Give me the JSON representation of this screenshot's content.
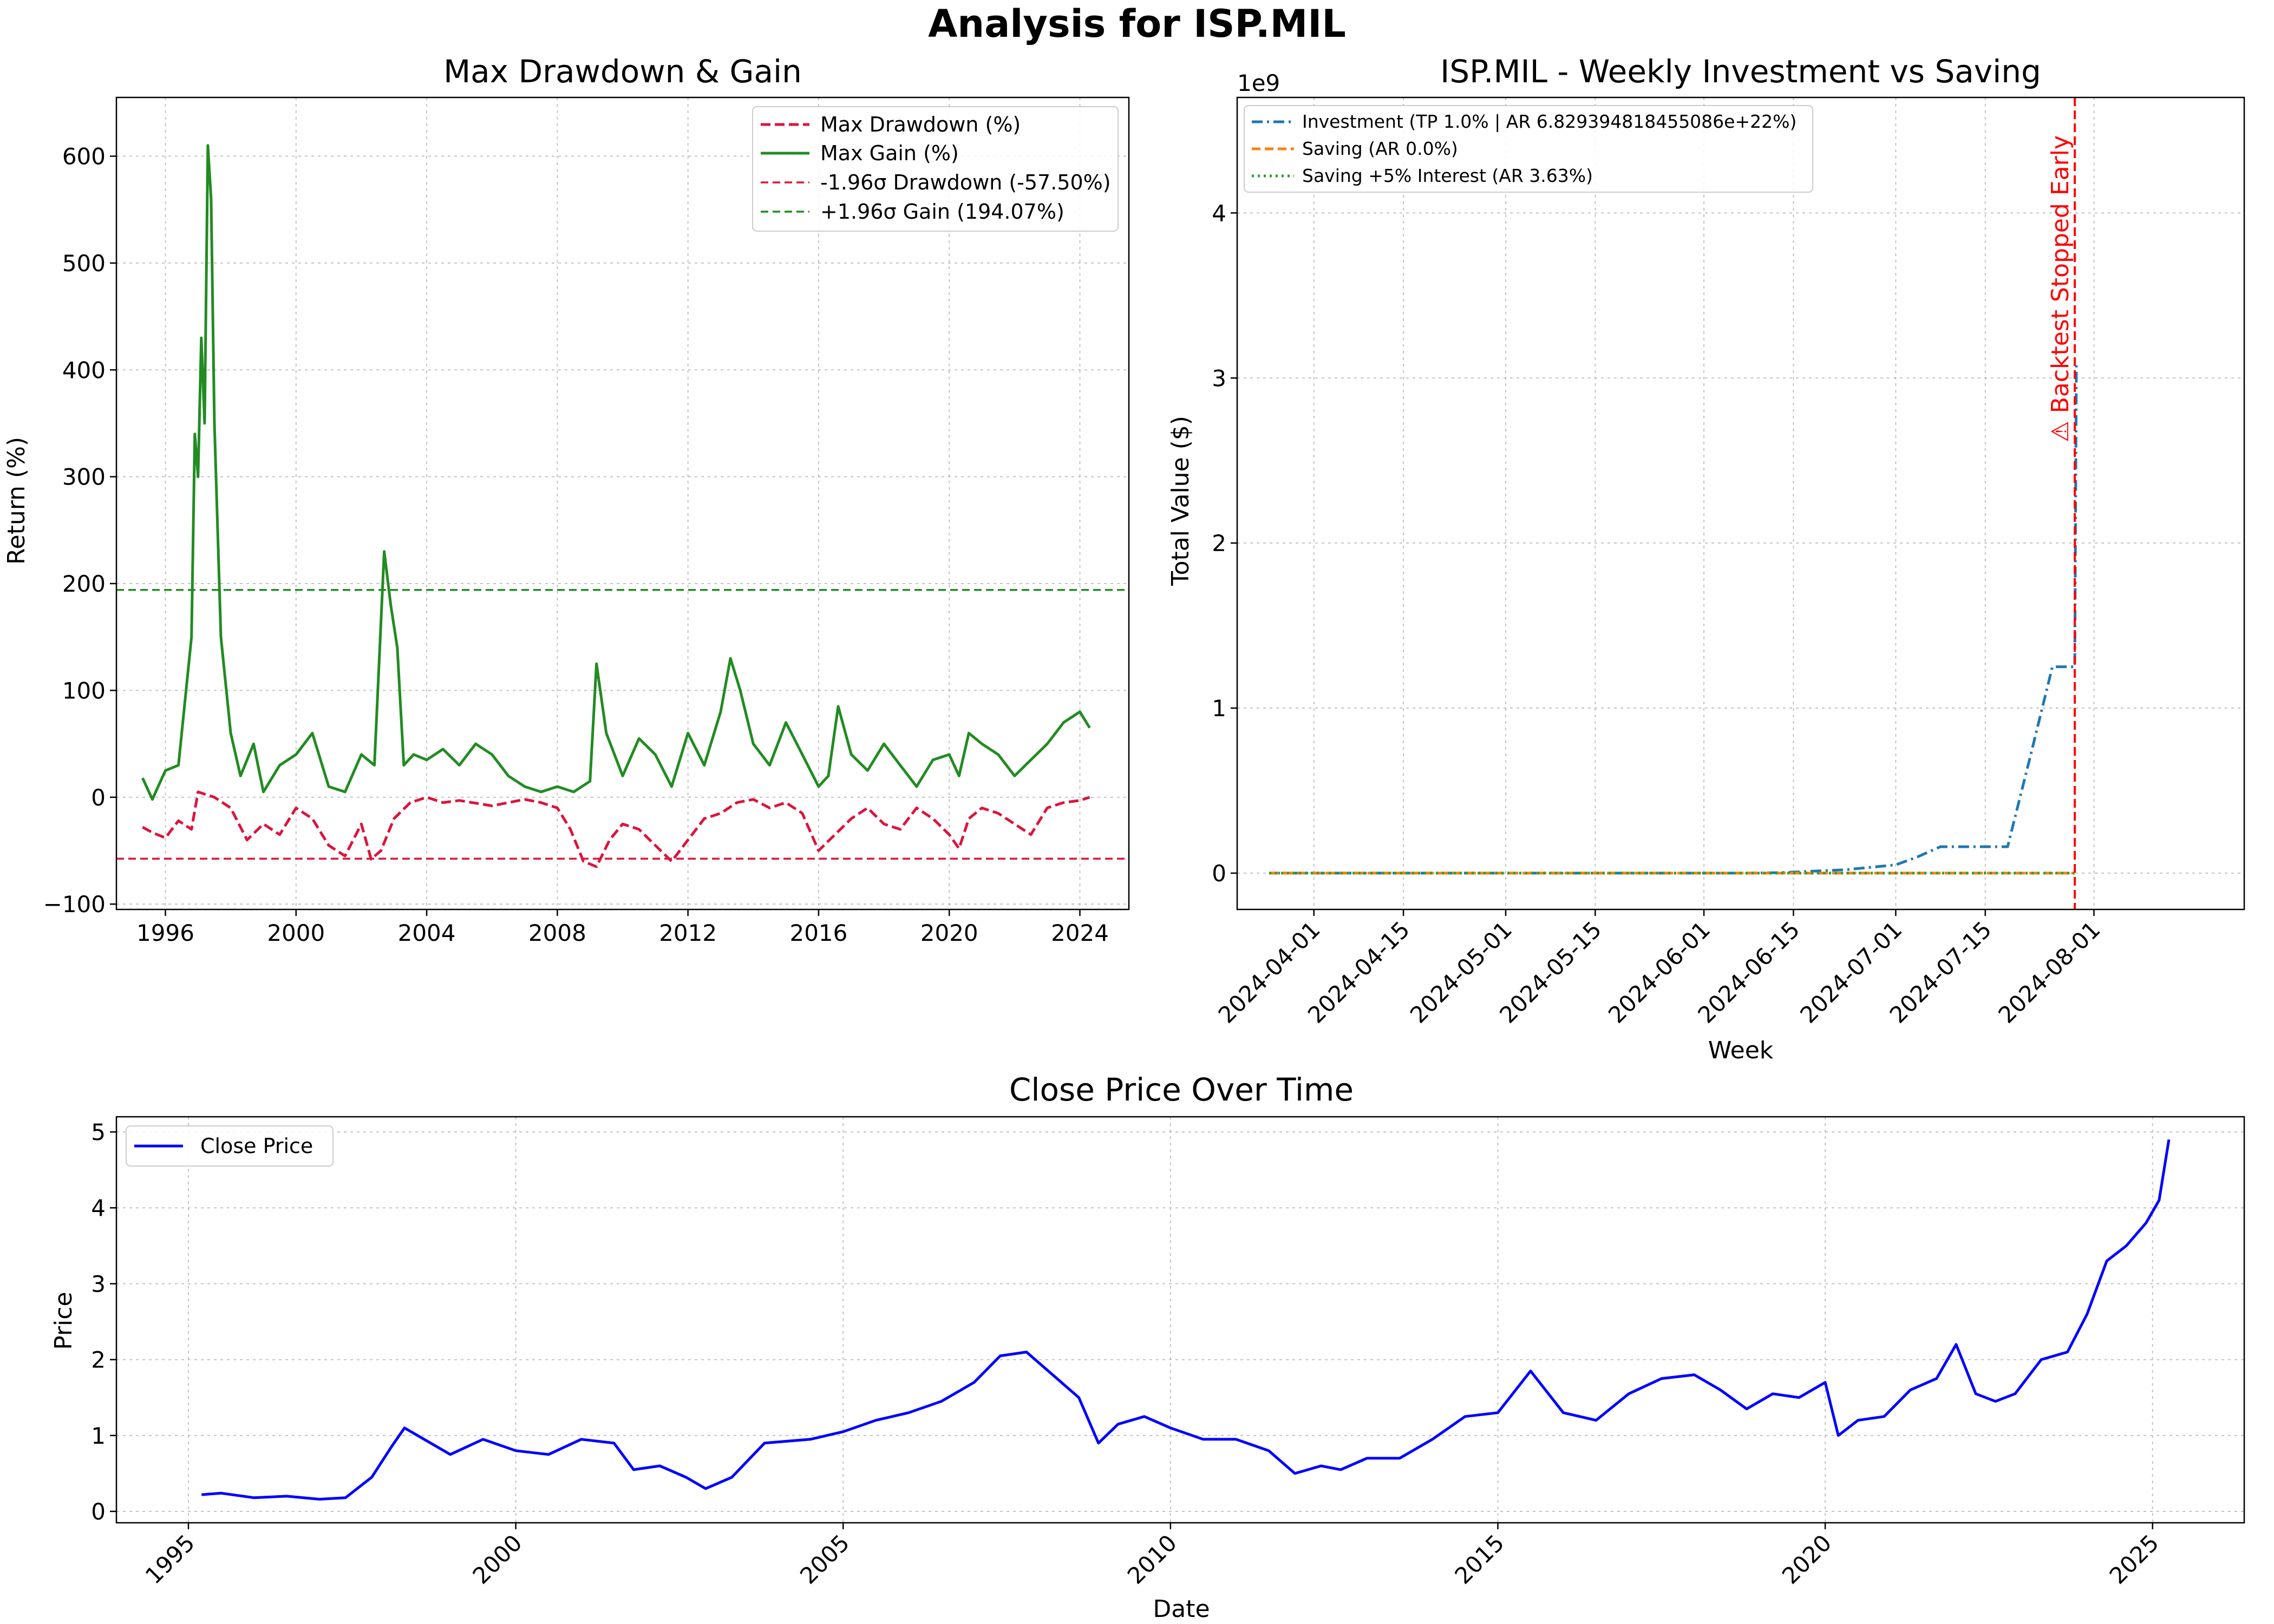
{
  "figure": {
    "title": "Analysis for ISP.MIL"
  },
  "chart_data": [
    {
      "id": "drawdown",
      "type": "line",
      "title": "Max Drawdown & Gain",
      "xlabel": "",
      "ylabel": "Return (%)",
      "xlim": [
        1994.5,
        2025.5
      ],
      "ylim": [
        -105,
        655
      ],
      "xticks": [
        "1996",
        "2000",
        "2004",
        "2008",
        "2012",
        "2016",
        "2020",
        "2024"
      ],
      "xtick_values": [
        1996,
        2000,
        2004,
        2008,
        2012,
        2016,
        2020,
        2024
      ],
      "yticks": [
        "−100",
        "0",
        "100",
        "200",
        "300",
        "400",
        "500",
        "600"
      ],
      "ytick_values": [
        -100,
        0,
        100,
        200,
        300,
        400,
        500,
        600
      ],
      "grid": true,
      "legend_position": "top-right",
      "colors": {
        "drawdown": "#dc143c",
        "gain": "#228b22"
      },
      "series": [
        {
          "name": "Max Drawdown (%)",
          "style": "dashed",
          "x": [
            1995.3,
            1995.6,
            1996.0,
            1996.4,
            1996.8,
            1997.0,
            1997.5,
            1998.0,
            1998.5,
            1999.0,
            1999.5,
            2000.0,
            2000.5,
            2001.0,
            2001.5,
            2002.0,
            2002.3,
            2002.6,
            2003.0,
            2003.5,
            2004.0,
            2004.5,
            2005.0,
            2006.0,
            2007.0,
            2007.5,
            2008.0,
            2008.4,
            2008.8,
            2009.2,
            2009.6,
            2010.0,
            2010.5,
            2011.0,
            2011.5,
            2012.0,
            2012.5,
            2013.0,
            2013.5,
            2014.0,
            2014.5,
            2015.0,
            2015.5,
            2016.0,
            2016.5,
            2017.0,
            2017.5,
            2018.0,
            2018.5,
            2019.0,
            2019.5,
            2020.0,
            2020.3,
            2020.6,
            2021.0,
            2021.5,
            2022.0,
            2022.5,
            2023.0,
            2023.5,
            2024.0,
            2024.3
          ],
          "y": [
            -28,
            -33,
            -38,
            -22,
            -30,
            5,
            0,
            -10,
            -40,
            -25,
            -35,
            -10,
            -20,
            -45,
            -55,
            -25,
            -58,
            -50,
            -20,
            -5,
            0,
            -5,
            -3,
            -8,
            -2,
            -5,
            -10,
            -30,
            -60,
            -65,
            -40,
            -25,
            -30,
            -45,
            -60,
            -40,
            -20,
            -15,
            -5,
            -2,
            -10,
            -5,
            -15,
            -50,
            -35,
            -20,
            -10,
            -25,
            -30,
            -10,
            -20,
            -35,
            -48,
            -20,
            -10,
            -15,
            -25,
            -35,
            -10,
            -5,
            -3,
            0
          ]
        },
        {
          "name": "Max Gain (%)",
          "style": "solid",
          "x": [
            1995.3,
            1995.6,
            1996.0,
            1996.4,
            1996.8,
            1996.9,
            1997.0,
            1997.1,
            1997.2,
            1997.3,
            1997.4,
            1997.5,
            1997.7,
            1998.0,
            1998.3,
            1998.7,
            1999.0,
            1999.5,
            2000.0,
            2000.5,
            2001.0,
            2001.5,
            2002.0,
            2002.4,
            2002.7,
            2002.9,
            2003.1,
            2003.3,
            2003.6,
            2004.0,
            2004.5,
            2005.0,
            2005.5,
            2006.0,
            2006.5,
            2007.0,
            2007.5,
            2008.0,
            2008.5,
            2009.0,
            2009.2,
            2009.5,
            2010.0,
            2010.5,
            2011.0,
            2011.5,
            2012.0,
            2012.5,
            2013.0,
            2013.3,
            2013.6,
            2014.0,
            2014.5,
            2015.0,
            2015.5,
            2016.0,
            2016.3,
            2016.6,
            2017.0,
            2017.5,
            2018.0,
            2018.5,
            2019.0,
            2019.5,
            2020.0,
            2020.3,
            2020.6,
            2021.0,
            2021.5,
            2022.0,
            2022.5,
            2023.0,
            2023.5,
            2024.0,
            2024.3
          ],
          "y": [
            18,
            -2,
            25,
            30,
            150,
            340,
            300,
            430,
            350,
            610,
            560,
            350,
            150,
            60,
            20,
            50,
            5,
            30,
            40,
            60,
            10,
            5,
            40,
            30,
            230,
            180,
            140,
            30,
            40,
            35,
            45,
            30,
            50,
            40,
            20,
            10,
            5,
            10,
            5,
            15,
            125,
            60,
            20,
            55,
            40,
            10,
            60,
            30,
            80,
            130,
            100,
            50,
            30,
            70,
            40,
            10,
            20,
            85,
            40,
            25,
            50,
            30,
            10,
            35,
            40,
            20,
            60,
            50,
            40,
            20,
            35,
            50,
            70,
            80,
            65
          ]
        },
        {
          "name": "-1.96σ Drawdown (-57.50%)",
          "style": "hline-dashed",
          "value": -57.5
        },
        {
          "name": "+1.96σ Gain (194.07%)",
          "style": "hline-dashed",
          "value": 194.07
        }
      ]
    },
    {
      "id": "investment",
      "type": "line",
      "title": "ISP.MIL - Weekly Investment vs Saving",
      "xlabel": "Week",
      "ylabel": "Total Value ($)",
      "y_offset_label": "1e9",
      "xlim": [
        -10,
        305
      ],
      "ylim": [
        -0.22,
        4.7
      ],
      "xticks": [
        "2024-04-01",
        "2024-04-15",
        "2024-05-01",
        "2024-05-15",
        "2024-06-01",
        "2024-06-15",
        "2024-07-01",
        "2024-07-15",
        "2024-08-01"
      ],
      "xtick_values": [
        14,
        42,
        74,
        102,
        136,
        164,
        196,
        224,
        258
      ],
      "yticks": [
        "0",
        "1",
        "2",
        "3",
        "4"
      ],
      "ytick_values": [
        0,
        1,
        2,
        3,
        4
      ],
      "grid": true,
      "legend_position": "top-left",
      "colors": {
        "investment": "#1f77b4",
        "saving": "#ff7f0e",
        "saving_interest": "#2ca02c",
        "stop": "#ff0000"
      },
      "series": [
        {
          "name": "Investment (TP 1.0% | AR 6.829394818455086e+22%)",
          "style": "dashdot",
          "x": [
            0,
            50,
            100,
            150,
            160,
            168,
            180,
            196,
            203,
            210,
            217,
            224,
            231,
            238,
            245,
            252,
            252.5
          ],
          "y": [
            0,
            0,
            0,
            0,
            0.003,
            0.01,
            0.02,
            0.05,
            0.1,
            0.16,
            0.16,
            0.16,
            0.16,
            0.7,
            1.25,
            1.25,
            3.1
          ]
        },
        {
          "name": "Saving (AR 0.0%)",
          "style": "dashed",
          "x": [
            0,
            252
          ],
          "y": [
            0,
            0
          ]
        },
        {
          "name": "Saving +5% Interest (AR 3.63%)",
          "style": "dotted",
          "x": [
            0,
            252
          ],
          "y": [
            0,
            0
          ]
        }
      ],
      "annotation": {
        "text": "⚠ Backtest Stopped Early",
        "x": 252
      }
    },
    {
      "id": "close",
      "type": "line",
      "title": "Close Price Over Time",
      "xlabel": "Date",
      "ylabel": "Price",
      "xlim": [
        1993.9,
        2026.4
      ],
      "ylim": [
        -0.15,
        5.2
      ],
      "xticks": [
        "1995",
        "2000",
        "2005",
        "2010",
        "2015",
        "2020",
        "2025"
      ],
      "xtick_values": [
        1995,
        2000,
        2005,
        2010,
        2015,
        2020,
        2025
      ],
      "yticks": [
        "0",
        "1",
        "2",
        "3",
        "4",
        "5"
      ],
      "ytick_values": [
        0,
        1,
        2,
        3,
        4,
        5
      ],
      "grid": true,
      "legend_position": "top-left",
      "colors": {
        "close": "#0000ff"
      },
      "series": [
        {
          "name": "Close Price",
          "style": "solid",
          "x": [
            1995.2,
            1995.5,
            1996.0,
            1996.5,
            1997.0,
            1997.4,
            1997.8,
            1998.1,
            1998.3,
            1998.7,
            1999.0,
            1999.5,
            2000.0,
            2000.5,
            2001.0,
            2001.5,
            2001.8,
            2002.2,
            2002.6,
            2002.9,
            2003.3,
            2003.8,
            2004.5,
            2005.0,
            2005.5,
            2006.0,
            2006.5,
            2007.0,
            2007.4,
            2007.8,
            2008.2,
            2008.6,
            2008.9,
            2009.2,
            2009.6,
            2010.0,
            2010.5,
            2011.0,
            2011.5,
            2011.9,
            2012.3,
            2012.6,
            2013.0,
            2013.5,
            2014.0,
            2014.5,
            2015.0,
            2015.5,
            2016.0,
            2016.5,
            2017.0,
            2017.5,
            2018.0,
            2018.4,
            2018.8,
            2019.2,
            2019.6,
            2020.0,
            2020.2,
            2020.5,
            2020.9,
            2021.3,
            2021.7,
            2022.0,
            2022.3,
            2022.6,
            2022.9,
            2023.3,
            2023.7,
            2024.0,
            2024.3,
            2024.6,
            2024.9,
            2025.1,
            2025.25
          ],
          "y": [
            0.22,
            0.24,
            0.18,
            0.2,
            0.16,
            0.18,
            0.45,
            0.85,
            1.1,
            0.9,
            0.75,
            0.95,
            0.8,
            0.75,
            0.95,
            0.9,
            0.55,
            0.6,
            0.45,
            0.3,
            0.45,
            0.9,
            0.95,
            1.05,
            1.2,
            1.3,
            1.45,
            1.7,
            2.05,
            2.1,
            1.8,
            1.5,
            0.9,
            1.15,
            1.25,
            1.1,
            0.95,
            0.95,
            0.8,
            0.5,
            0.6,
            0.55,
            0.7,
            0.7,
            0.95,
            1.25,
            1.3,
            1.85,
            1.3,
            1.2,
            1.55,
            1.75,
            1.8,
            1.6,
            1.35,
            1.55,
            1.5,
            1.7,
            1.0,
            1.2,
            1.25,
            1.6,
            1.75,
            2.2,
            1.55,
            1.45,
            1.55,
            2.0,
            2.1,
            2.6,
            3.3,
            3.5,
            3.8,
            4.1,
            4.9
          ]
        }
      ]
    }
  ]
}
